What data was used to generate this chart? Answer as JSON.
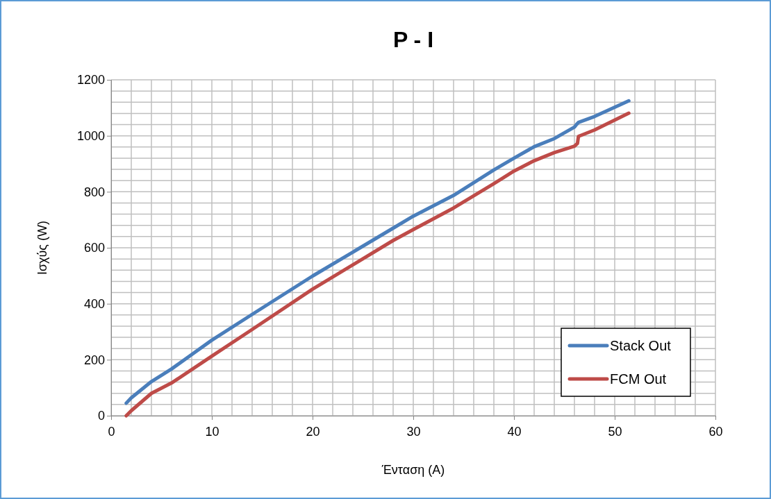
{
  "chart_data": {
    "type": "line",
    "title": "P - I",
    "xlabel": "Ένταση (A)",
    "ylabel": "Ισχύς (W)",
    "xlim": [
      0,
      60
    ],
    "xticks": [
      0,
      10,
      20,
      30,
      40,
      50,
      60
    ],
    "ylim": [
      0,
      1200
    ],
    "yticks": [
      0,
      200,
      400,
      600,
      800,
      1000,
      1200
    ],
    "grid": true,
    "legend": "bottom right",
    "marker": "none",
    "line_style": "solid",
    "series": [
      {
        "name": "Stack Out",
        "color": "#4a7ebb",
        "x": [
          1.5,
          2,
          4,
          6,
          10,
          14,
          20,
          28,
          30,
          34,
          38,
          40,
          42,
          44,
          46,
          46.2,
          46.4,
          48,
          51.4
        ],
        "values": [
          45,
          64,
          122,
          167,
          270,
          362,
          499,
          670,
          713,
          787,
          878,
          920,
          961,
          990,
          1031,
          1040,
          1048,
          1069,
          1125
        ]
      },
      {
        "name": "FCM Out",
        "color": "#be4b48",
        "x": [
          1.5,
          2,
          4,
          6,
          10,
          14,
          20,
          28,
          30,
          34,
          38,
          40,
          42,
          44,
          46,
          46.3,
          46.4,
          48,
          51.4
        ],
        "values": [
          0,
          18,
          80,
          117,
          213,
          308,
          452,
          626,
          665,
          742,
          829,
          874,
          911,
          940,
          963,
          973,
          998,
          1021,
          1081
        ]
      }
    ]
  }
}
